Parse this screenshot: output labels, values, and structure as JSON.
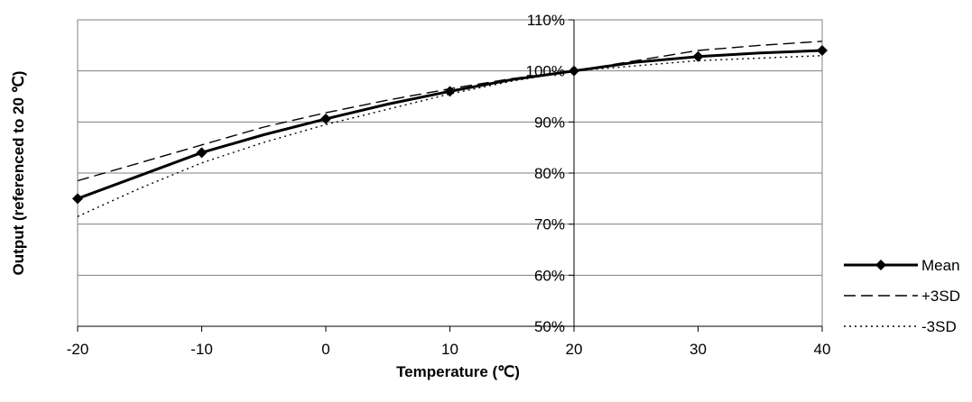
{
  "chart_data": {
    "type": "line",
    "title": "",
    "xlabel": "Temperature (℃)",
    "ylabel": "Output (referenced to 20 ℃)",
    "x": [
      -20,
      -10,
      0,
      10,
      20,
      30,
      40
    ],
    "xlim": [
      -20,
      40
    ],
    "ylim": [
      0.5,
      1.1
    ],
    "x_ticks": [
      "-20",
      "-10",
      "0",
      "10",
      "20",
      "30",
      "40"
    ],
    "y_ticks": [
      "50%",
      "60%",
      "70%",
      "80%",
      "90%",
      "100%",
      "110%"
    ],
    "grid": "horizontal",
    "legend_position": "right",
    "series": [
      {
        "name": "Mean",
        "style": "solid-diamond",
        "color": "#000000",
        "points": [
          [
            -20,
            0.75
          ],
          [
            -15,
            0.795
          ],
          [
            -10,
            0.84
          ],
          [
            -5,
            0.875
          ],
          [
            0,
            0.906
          ],
          [
            5,
            0.935
          ],
          [
            10,
            0.96
          ],
          [
            15,
            0.983
          ],
          [
            20,
            1.0
          ],
          [
            25,
            1.017
          ],
          [
            30,
            1.028
          ],
          [
            35,
            1.035
          ],
          [
            40,
            1.04
          ]
        ]
      },
      {
        "name": "+3SD",
        "style": "dashed",
        "color": "#000000",
        "points": [
          [
            -20,
            0.785
          ],
          [
            -15,
            0.82
          ],
          [
            -10,
            0.855
          ],
          [
            -5,
            0.89
          ],
          [
            0,
            0.918
          ],
          [
            5,
            0.943
          ],
          [
            10,
            0.965
          ],
          [
            15,
            0.985
          ],
          [
            20,
            1.0
          ],
          [
            25,
            1.02
          ],
          [
            30,
            1.04
          ],
          [
            35,
            1.05
          ],
          [
            40,
            1.058
          ]
        ]
      },
      {
        "name": "-3SD",
        "style": "dotted",
        "color": "#000000",
        "points": [
          [
            -20,
            0.715
          ],
          [
            -15,
            0.77
          ],
          [
            -10,
            0.82
          ],
          [
            -5,
            0.86
          ],
          [
            0,
            0.895
          ],
          [
            5,
            0.925
          ],
          [
            10,
            0.955
          ],
          [
            15,
            0.98
          ],
          [
            20,
            1.0
          ],
          [
            25,
            1.01
          ],
          [
            30,
            1.02
          ],
          [
            35,
            1.025
          ],
          [
            40,
            1.03
          ]
        ]
      }
    ]
  }
}
